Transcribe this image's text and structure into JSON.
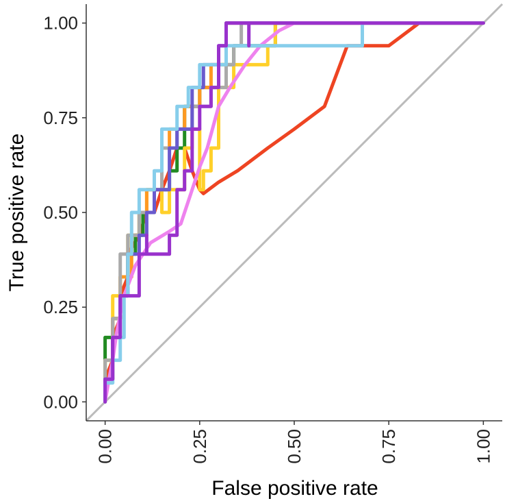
{
  "chart_data": {
    "type": "line",
    "title": "",
    "xlabel": "False positive rate",
    "ylabel": "True positive rate",
    "xlim": [
      -0.05,
      1.05
    ],
    "ylim": [
      -0.05,
      1.05
    ],
    "x_ticks": [
      0.0,
      0.25,
      0.5,
      0.75,
      1.0
    ],
    "x_tick_labels": [
      "0.00",
      "0.25",
      "0.50",
      "0.75",
      "1.00"
    ],
    "y_ticks": [
      0.0,
      0.25,
      0.5,
      0.75,
      1.0
    ],
    "y_tick_labels": [
      "0.00",
      "0.25",
      "0.50",
      "0.75",
      "1.00"
    ],
    "grid": false,
    "legend": "none",
    "diagonal_reference": {
      "points": [
        [
          -0.05,
          -0.05
        ],
        [
          1.05,
          1.05
        ]
      ],
      "color": "#bbbbbb"
    },
    "series": [
      {
        "color": "#ee4422",
        "points": [
          [
            0.0,
            0.0
          ],
          [
            0.0,
            0.06
          ],
          [
            0.02,
            0.11
          ],
          [
            0.02,
            0.17
          ],
          [
            0.04,
            0.22
          ],
          [
            0.04,
            0.28
          ],
          [
            0.06,
            0.33
          ],
          [
            0.06,
            0.39
          ],
          [
            0.09,
            0.44
          ],
          [
            0.11,
            0.5
          ],
          [
            0.13,
            0.5
          ],
          [
            0.15,
            0.56
          ],
          [
            0.17,
            0.61
          ],
          [
            0.19,
            0.67
          ],
          [
            0.21,
            0.67
          ],
          [
            0.23,
            0.61
          ],
          [
            0.25,
            0.56
          ],
          [
            0.26,
            0.55
          ],
          [
            0.3,
            0.58
          ],
          [
            0.35,
            0.61
          ],
          [
            0.43,
            0.67
          ],
          [
            0.5,
            0.72
          ],
          [
            0.58,
            0.78
          ],
          [
            0.64,
            0.94
          ],
          [
            0.75,
            0.94
          ],
          [
            0.83,
            1.0
          ],
          [
            1.0,
            1.0
          ]
        ]
      },
      {
        "color": "#228b22",
        "points": [
          [
            0.0,
            0.0
          ],
          [
            0.0,
            0.17
          ],
          [
            0.02,
            0.17
          ],
          [
            0.02,
            0.22
          ],
          [
            0.04,
            0.22
          ],
          [
            0.04,
            0.28
          ],
          [
            0.06,
            0.28
          ],
          [
            0.06,
            0.39
          ],
          [
            0.08,
            0.39
          ],
          [
            0.08,
            0.44
          ],
          [
            0.1,
            0.44
          ],
          [
            0.1,
            0.5
          ],
          [
            0.13,
            0.5
          ],
          [
            0.13,
            0.56
          ],
          [
            0.17,
            0.56
          ],
          [
            0.17,
            0.61
          ],
          [
            0.19,
            0.61
          ],
          [
            0.19,
            0.67
          ],
          [
            0.21,
            0.67
          ],
          [
            0.21,
            0.78
          ],
          [
            0.25,
            0.78
          ],
          [
            0.25,
            0.83
          ],
          [
            0.3,
            0.83
          ],
          [
            0.3,
            0.89
          ],
          [
            0.34,
            0.89
          ],
          [
            0.34,
            0.94
          ],
          [
            0.45,
            0.94
          ],
          [
            0.45,
            1.0
          ],
          [
            1.0,
            1.0
          ]
        ]
      },
      {
        "color": "#ffd02a",
        "points": [
          [
            0.0,
            0.0
          ],
          [
            0.0,
            0.11
          ],
          [
            0.02,
            0.11
          ],
          [
            0.02,
            0.28
          ],
          [
            0.04,
            0.28
          ],
          [
            0.04,
            0.33
          ],
          [
            0.06,
            0.33
          ],
          [
            0.06,
            0.44
          ],
          [
            0.09,
            0.44
          ],
          [
            0.09,
            0.5
          ],
          [
            0.11,
            0.5
          ],
          [
            0.11,
            0.56
          ],
          [
            0.15,
            0.56
          ],
          [
            0.15,
            0.5
          ],
          [
            0.17,
            0.5
          ],
          [
            0.17,
            0.56
          ],
          [
            0.21,
            0.56
          ],
          [
            0.21,
            0.67
          ],
          [
            0.23,
            0.67
          ],
          [
            0.23,
            0.72
          ],
          [
            0.25,
            0.72
          ],
          [
            0.25,
            0.56
          ],
          [
            0.26,
            0.56
          ],
          [
            0.26,
            0.61
          ],
          [
            0.28,
            0.61
          ],
          [
            0.28,
            0.67
          ],
          [
            0.3,
            0.67
          ],
          [
            0.3,
            0.83
          ],
          [
            0.34,
            0.83
          ],
          [
            0.34,
            0.89
          ],
          [
            0.43,
            0.89
          ],
          [
            0.43,
            0.94
          ],
          [
            0.45,
            0.94
          ],
          [
            0.45,
            1.0
          ],
          [
            1.0,
            1.0
          ]
        ]
      },
      {
        "color": "#ff9922",
        "points": [
          [
            0.0,
            0.0
          ],
          [
            0.0,
            0.06
          ],
          [
            0.02,
            0.06
          ],
          [
            0.02,
            0.22
          ],
          [
            0.04,
            0.22
          ],
          [
            0.04,
            0.33
          ],
          [
            0.07,
            0.33
          ],
          [
            0.07,
            0.44
          ],
          [
            0.09,
            0.44
          ],
          [
            0.09,
            0.5
          ],
          [
            0.11,
            0.5
          ],
          [
            0.11,
            0.56
          ],
          [
            0.15,
            0.56
          ],
          [
            0.15,
            0.67
          ],
          [
            0.17,
            0.67
          ],
          [
            0.17,
            0.72
          ],
          [
            0.21,
            0.72
          ],
          [
            0.21,
            0.78
          ],
          [
            0.25,
            0.78
          ],
          [
            0.25,
            0.83
          ],
          [
            0.28,
            0.83
          ],
          [
            0.28,
            0.89
          ],
          [
            0.32,
            0.89
          ],
          [
            0.32,
            1.0
          ],
          [
            1.0,
            1.0
          ]
        ]
      },
      {
        "color": "#aaaaaa",
        "points": [
          [
            0.0,
            0.0
          ],
          [
            0.0,
            0.11
          ],
          [
            0.02,
            0.11
          ],
          [
            0.02,
            0.22
          ],
          [
            0.04,
            0.22
          ],
          [
            0.04,
            0.39
          ],
          [
            0.06,
            0.39
          ],
          [
            0.06,
            0.44
          ],
          [
            0.09,
            0.44
          ],
          [
            0.09,
            0.5
          ],
          [
            0.13,
            0.5
          ],
          [
            0.13,
            0.56
          ],
          [
            0.15,
            0.56
          ],
          [
            0.15,
            0.67
          ],
          [
            0.19,
            0.67
          ],
          [
            0.19,
            0.72
          ],
          [
            0.23,
            0.72
          ],
          [
            0.23,
            0.78
          ],
          [
            0.28,
            0.78
          ],
          [
            0.28,
            0.83
          ],
          [
            0.32,
            0.83
          ],
          [
            0.32,
            0.89
          ],
          [
            0.34,
            0.89
          ],
          [
            0.34,
            0.94
          ],
          [
            0.36,
            0.94
          ],
          [
            0.36,
            1.0
          ],
          [
            1.0,
            1.0
          ]
        ]
      },
      {
        "color": "#6a5acd",
        "points": [
          [
            0.0,
            0.0
          ],
          [
            0.0,
            0.06
          ],
          [
            0.02,
            0.06
          ],
          [
            0.02,
            0.17
          ],
          [
            0.04,
            0.17
          ],
          [
            0.04,
            0.28
          ],
          [
            0.06,
            0.28
          ],
          [
            0.06,
            0.39
          ],
          [
            0.09,
            0.39
          ],
          [
            0.09,
            0.44
          ],
          [
            0.11,
            0.44
          ],
          [
            0.11,
            0.5
          ],
          [
            0.13,
            0.5
          ],
          [
            0.13,
            0.56
          ],
          [
            0.17,
            0.56
          ],
          [
            0.17,
            0.67
          ],
          [
            0.19,
            0.67
          ],
          [
            0.19,
            0.72
          ],
          [
            0.23,
            0.72
          ],
          [
            0.23,
            0.83
          ],
          [
            0.26,
            0.83
          ],
          [
            0.26,
            0.89
          ],
          [
            0.3,
            0.89
          ],
          [
            0.3,
            0.94
          ],
          [
            0.32,
            0.94
          ],
          [
            0.32,
            1.0
          ],
          [
            1.0,
            1.0
          ]
        ]
      },
      {
        "color": "#ee82ee",
        "points": [
          [
            0.0,
            0.0
          ],
          [
            0.01,
            0.06
          ],
          [
            0.02,
            0.11
          ],
          [
            0.03,
            0.18
          ],
          [
            0.05,
            0.28
          ],
          [
            0.08,
            0.36
          ],
          [
            0.12,
            0.42
          ],
          [
            0.17,
            0.45
          ],
          [
            0.2,
            0.47
          ],
          [
            0.25,
            0.62
          ],
          [
            0.27,
            0.67
          ],
          [
            0.3,
            0.78
          ],
          [
            0.33,
            0.83
          ],
          [
            0.37,
            0.89
          ],
          [
            0.41,
            0.94
          ],
          [
            0.46,
            0.98
          ],
          [
            0.5,
            1.0
          ],
          [
            1.0,
            1.0
          ]
        ]
      },
      {
        "color": "#87ceeb",
        "points": [
          [
            0.0,
            0.0
          ],
          [
            0.0,
            0.05
          ],
          [
            0.02,
            0.05
          ],
          [
            0.02,
            0.11
          ],
          [
            0.04,
            0.11
          ],
          [
            0.04,
            0.17
          ],
          [
            0.05,
            0.17
          ],
          [
            0.05,
            0.28
          ],
          [
            0.06,
            0.28
          ],
          [
            0.06,
            0.39
          ],
          [
            0.07,
            0.39
          ],
          [
            0.07,
            0.5
          ],
          [
            0.09,
            0.5
          ],
          [
            0.09,
            0.56
          ],
          [
            0.13,
            0.56
          ],
          [
            0.13,
            0.61
          ],
          [
            0.15,
            0.61
          ],
          [
            0.15,
            0.72
          ],
          [
            0.19,
            0.72
          ],
          [
            0.19,
            0.78
          ],
          [
            0.22,
            0.78
          ],
          [
            0.22,
            0.83
          ],
          [
            0.25,
            0.83
          ],
          [
            0.25,
            0.89
          ],
          [
            0.32,
            0.89
          ],
          [
            0.32,
            0.94
          ],
          [
            0.45,
            0.94
          ],
          [
            0.45,
            0.94
          ],
          [
            0.68,
            0.94
          ],
          [
            0.68,
            0.98
          ],
          [
            0.68,
            1.0
          ],
          [
            1.0,
            1.0
          ]
        ]
      },
      {
        "color": "#9932cc",
        "points": [
          [
            0.0,
            0.0
          ],
          [
            0.0,
            0.06
          ],
          [
            0.02,
            0.06
          ],
          [
            0.02,
            0.17
          ],
          [
            0.04,
            0.17
          ],
          [
            0.04,
            0.28
          ],
          [
            0.09,
            0.28
          ],
          [
            0.09,
            0.39
          ],
          [
            0.11,
            0.39
          ],
          [
            0.11,
            0.44
          ],
          [
            0.11,
            0.39
          ],
          [
            0.17,
            0.39
          ],
          [
            0.17,
            0.44
          ],
          [
            0.19,
            0.44
          ],
          [
            0.19,
            0.56
          ],
          [
            0.21,
            0.56
          ],
          [
            0.21,
            0.61
          ],
          [
            0.23,
            0.61
          ],
          [
            0.23,
            0.72
          ],
          [
            0.25,
            0.72
          ],
          [
            0.25,
            0.78
          ],
          [
            0.28,
            0.78
          ],
          [
            0.28,
            0.83
          ],
          [
            0.3,
            0.83
          ],
          [
            0.3,
            0.94
          ],
          [
            0.32,
            0.94
          ],
          [
            0.32,
            1.0
          ],
          [
            0.38,
            1.0
          ],
          [
            0.38,
            0.94
          ],
          [
            0.38,
            1.0
          ],
          [
            1.0,
            1.0
          ]
        ]
      }
    ]
  }
}
